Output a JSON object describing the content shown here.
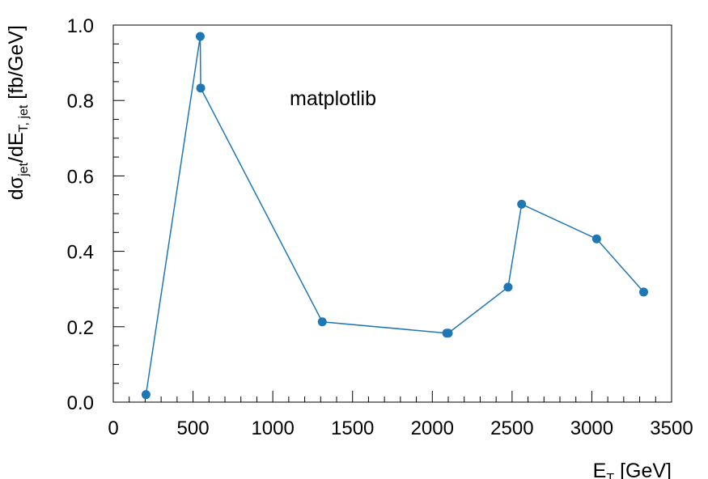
{
  "chart_data": {
    "type": "line",
    "annotation": "matplotlib",
    "xlabel": {
      "main": "E",
      "sub": "T",
      "rest": " [GeV]"
    },
    "ylabel": {
      "p1": "dσ",
      "sub1": "jet",
      "p2": "/dE",
      "sub2": "T, jet",
      "p3": " [fb/GeV]"
    },
    "xlim": [
      0,
      3500
    ],
    "ylim": [
      0,
      1.0
    ],
    "xticks": [
      0,
      500,
      1000,
      1500,
      2000,
      2500,
      3000,
      3500
    ],
    "xtick_labels": [
      "0",
      "500",
      "1000",
      "1500",
      "2000",
      "2500",
      "3000",
      "3500"
    ],
    "yticks": [
      0.0,
      0.2,
      0.4,
      0.6,
      0.8,
      1.0
    ],
    "ytick_labels": [
      "0.0",
      "0.2",
      "0.4",
      "0.6",
      "0.8",
      "1.0"
    ],
    "grid": false,
    "series": [
      {
        "color": "#1f77b4",
        "x": [
          205,
          545,
          548,
          1310,
          2090,
          2100,
          2475,
          2560,
          3030,
          3325
        ],
        "y": [
          0.02,
          0.97,
          0.833,
          0.213,
          0.183,
          0.183,
          0.305,
          0.525,
          0.433,
          0.292
        ]
      }
    ]
  }
}
